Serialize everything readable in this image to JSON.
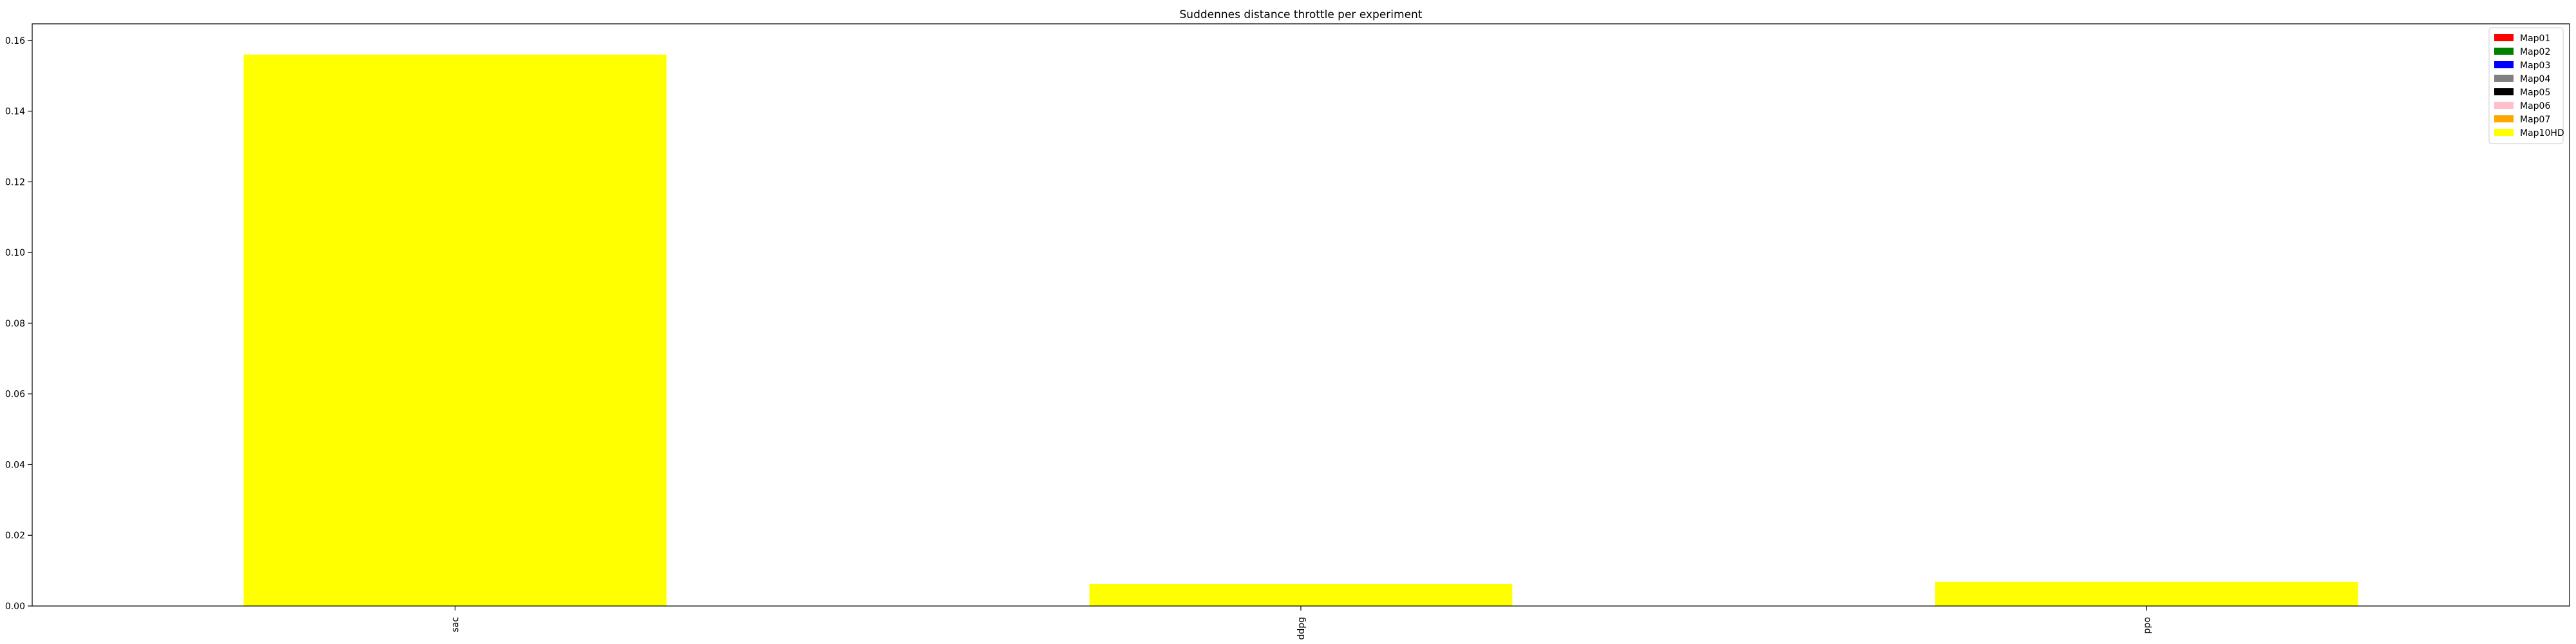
{
  "chart_data": {
    "type": "bar",
    "title": "Suddennes distance throttle per experiment",
    "xlabel": "",
    "ylabel": "",
    "categories": [
      "sac",
      "ddpg",
      "ppo"
    ],
    "ylim": [
      0,
      0.1647
    ],
    "yticks": [
      0.0,
      0.02,
      0.04,
      0.06,
      0.08,
      0.1,
      0.12,
      0.14,
      0.16
    ],
    "ytick_labels": [
      "0.00",
      "0.02",
      "0.04",
      "0.06",
      "0.08",
      "0.10",
      "0.12",
      "0.14",
      "0.16"
    ],
    "grid": false,
    "legend_position": "top-right",
    "series": [
      {
        "name": "Map01",
        "color": "#ff0000",
        "values": [
          0,
          0,
          0
        ]
      },
      {
        "name": "Map02",
        "color": "#008000",
        "values": [
          0,
          0,
          0
        ]
      },
      {
        "name": "Map03",
        "color": "#0000ff",
        "values": [
          0,
          0,
          0
        ]
      },
      {
        "name": "Map04",
        "color": "#808080",
        "values": [
          0,
          0,
          0
        ]
      },
      {
        "name": "Map05",
        "color": "#000000",
        "values": [
          0,
          0,
          0
        ]
      },
      {
        "name": "Map06",
        "color": "#ffc0cb",
        "values": [
          0,
          0,
          0
        ]
      },
      {
        "name": "Map07",
        "color": "#ffa500",
        "values": [
          0,
          0,
          0
        ]
      },
      {
        "name": "Map10HD",
        "color": "#ffff00",
        "values": [
          0.156,
          0.0062,
          0.0068
        ]
      }
    ]
  }
}
